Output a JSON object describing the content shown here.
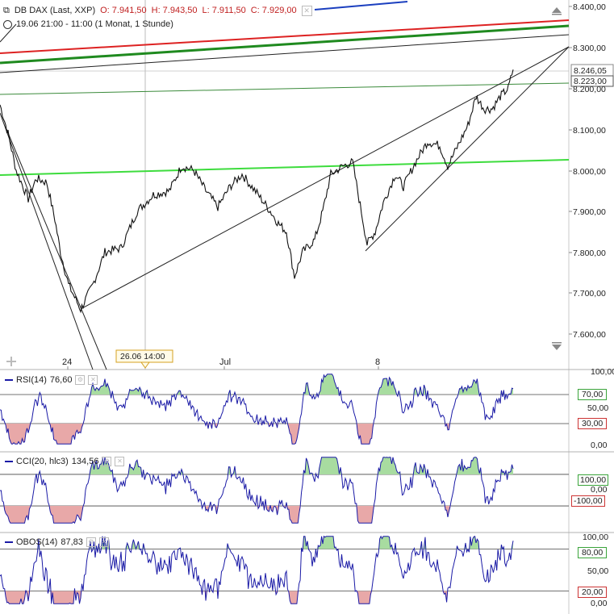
{
  "header": {
    "instrument": "DB DAX (Last, XXP)",
    "open": "O: 7.941,50",
    "high": "H: 7.943,50",
    "low": "L: 7.911,50",
    "close": "C: 7.929,00",
    "period": "19.06 21:00 - 11:00 (1 Monat, 1 Stunde)"
  },
  "price_axis": {
    "ticks": [
      "8.400,00",
      "8.300,00",
      "8.200,00",
      "8.100,00",
      "8.000,00",
      "7.900,00",
      "7.800,00",
      "7.700,00",
      "7.600,00"
    ],
    "marker_high": "8.246,05",
    "marker_current": "8.223,00"
  },
  "time_axis": {
    "labels": [
      "24",
      "Jul",
      "8"
    ],
    "crosshair_label": "26.06 14:00"
  },
  "panels": {
    "rsi": {
      "title": "RSI(14)",
      "value": "76,60",
      "ticks": [
        "100,00",
        "50,00",
        "0,00"
      ],
      "upper": "70,00",
      "lower": "30,00"
    },
    "cci": {
      "title": "CCI(20, hlc3)",
      "value": "134,56",
      "ticks": [
        "0,00"
      ],
      "upper": "100,00",
      "lower": "-100,00"
    },
    "obos": {
      "title": "OBOS(14)",
      "value": "87,83",
      "ticks": [
        "100,00",
        "50,00",
        "0,00"
      ],
      "upper": "80,00",
      "lower": "20,00"
    }
  },
  "colors": {
    "price": "#111111",
    "indicator": "#1a1aa6",
    "overbought_fill": "#a8dca0",
    "oversold_fill": "#e8a8a8",
    "trend_green": "#2a8a2a",
    "trend_red": "#dd2222",
    "support_green": "#3ddc3d",
    "axis_marker": "#3aa43a",
    "axis_marker_red": "#cc3333"
  },
  "chart_data": {
    "type": "line",
    "title": "DB DAX (Last, XXP)",
    "timeframe": "1 Stunde",
    "ylim": [
      7560,
      8400
    ],
    "x_labels": [
      "24",
      "Jul",
      "8"
    ],
    "price_path": [
      {
        "x": 0,
        "y": 8160
      },
      {
        "x": 10,
        "y": 8090
      },
      {
        "x": 20,
        "y": 8000
      },
      {
        "x": 35,
        "y": 7930
      },
      {
        "x": 45,
        "y": 7980
      },
      {
        "x": 58,
        "y": 7970
      },
      {
        "x": 68,
        "y": 7880
      },
      {
        "x": 75,
        "y": 7800
      },
      {
        "x": 85,
        "y": 7720
      },
      {
        "x": 100,
        "y": 7660
      },
      {
        "x": 115,
        "y": 7720
      },
      {
        "x": 130,
        "y": 7800
      },
      {
        "x": 150,
        "y": 7810
      },
      {
        "x": 170,
        "y": 7900
      },
      {
        "x": 190,
        "y": 7940
      },
      {
        "x": 210,
        "y": 7950
      },
      {
        "x": 225,
        "y": 8010
      },
      {
        "x": 240,
        "y": 8000
      },
      {
        "x": 255,
        "y": 7950
      },
      {
        "x": 270,
        "y": 7910
      },
      {
        "x": 285,
        "y": 7960
      },
      {
        "x": 300,
        "y": 7990
      },
      {
        "x": 320,
        "y": 7940
      },
      {
        "x": 335,
        "y": 7900
      },
      {
        "x": 345,
        "y": 7870
      },
      {
        "x": 355,
        "y": 7850
      },
      {
        "x": 365,
        "y": 7740
      },
      {
        "x": 375,
        "y": 7800
      },
      {
        "x": 390,
        "y": 7830
      },
      {
        "x": 400,
        "y": 7900
      },
      {
        "x": 410,
        "y": 7990
      },
      {
        "x": 425,
        "y": 8010
      },
      {
        "x": 437,
        "y": 8020
      },
      {
        "x": 445,
        "y": 7930
      },
      {
        "x": 455,
        "y": 7820
      },
      {
        "x": 465,
        "y": 7850
      },
      {
        "x": 475,
        "y": 7920
      },
      {
        "x": 490,
        "y": 7990
      },
      {
        "x": 500,
        "y": 7960
      },
      {
        "x": 515,
        "y": 8020
      },
      {
        "x": 530,
        "y": 8070
      },
      {
        "x": 545,
        "y": 8060
      },
      {
        "x": 555,
        "y": 8010
      },
      {
        "x": 565,
        "y": 8050
      },
      {
        "x": 580,
        "y": 8110
      },
      {
        "x": 590,
        "y": 8180
      },
      {
        "x": 600,
        "y": 8150
      },
      {
        "x": 610,
        "y": 8150
      },
      {
        "x": 620,
        "y": 8180
      },
      {
        "x": 630,
        "y": 8200
      },
      {
        "x": 636,
        "y": 8246
      }
    ],
    "indicator_series": [
      {
        "name": "RSI(14)",
        "last": 76.6,
        "upper": 70,
        "lower": 30
      },
      {
        "name": "CCI(20, hlc3)",
        "last": 134.56,
        "upper": 100,
        "lower": -100
      },
      {
        "name": "OBOS(14)",
        "last": 87.83,
        "upper": 80,
        "lower": 20
      }
    ]
  }
}
